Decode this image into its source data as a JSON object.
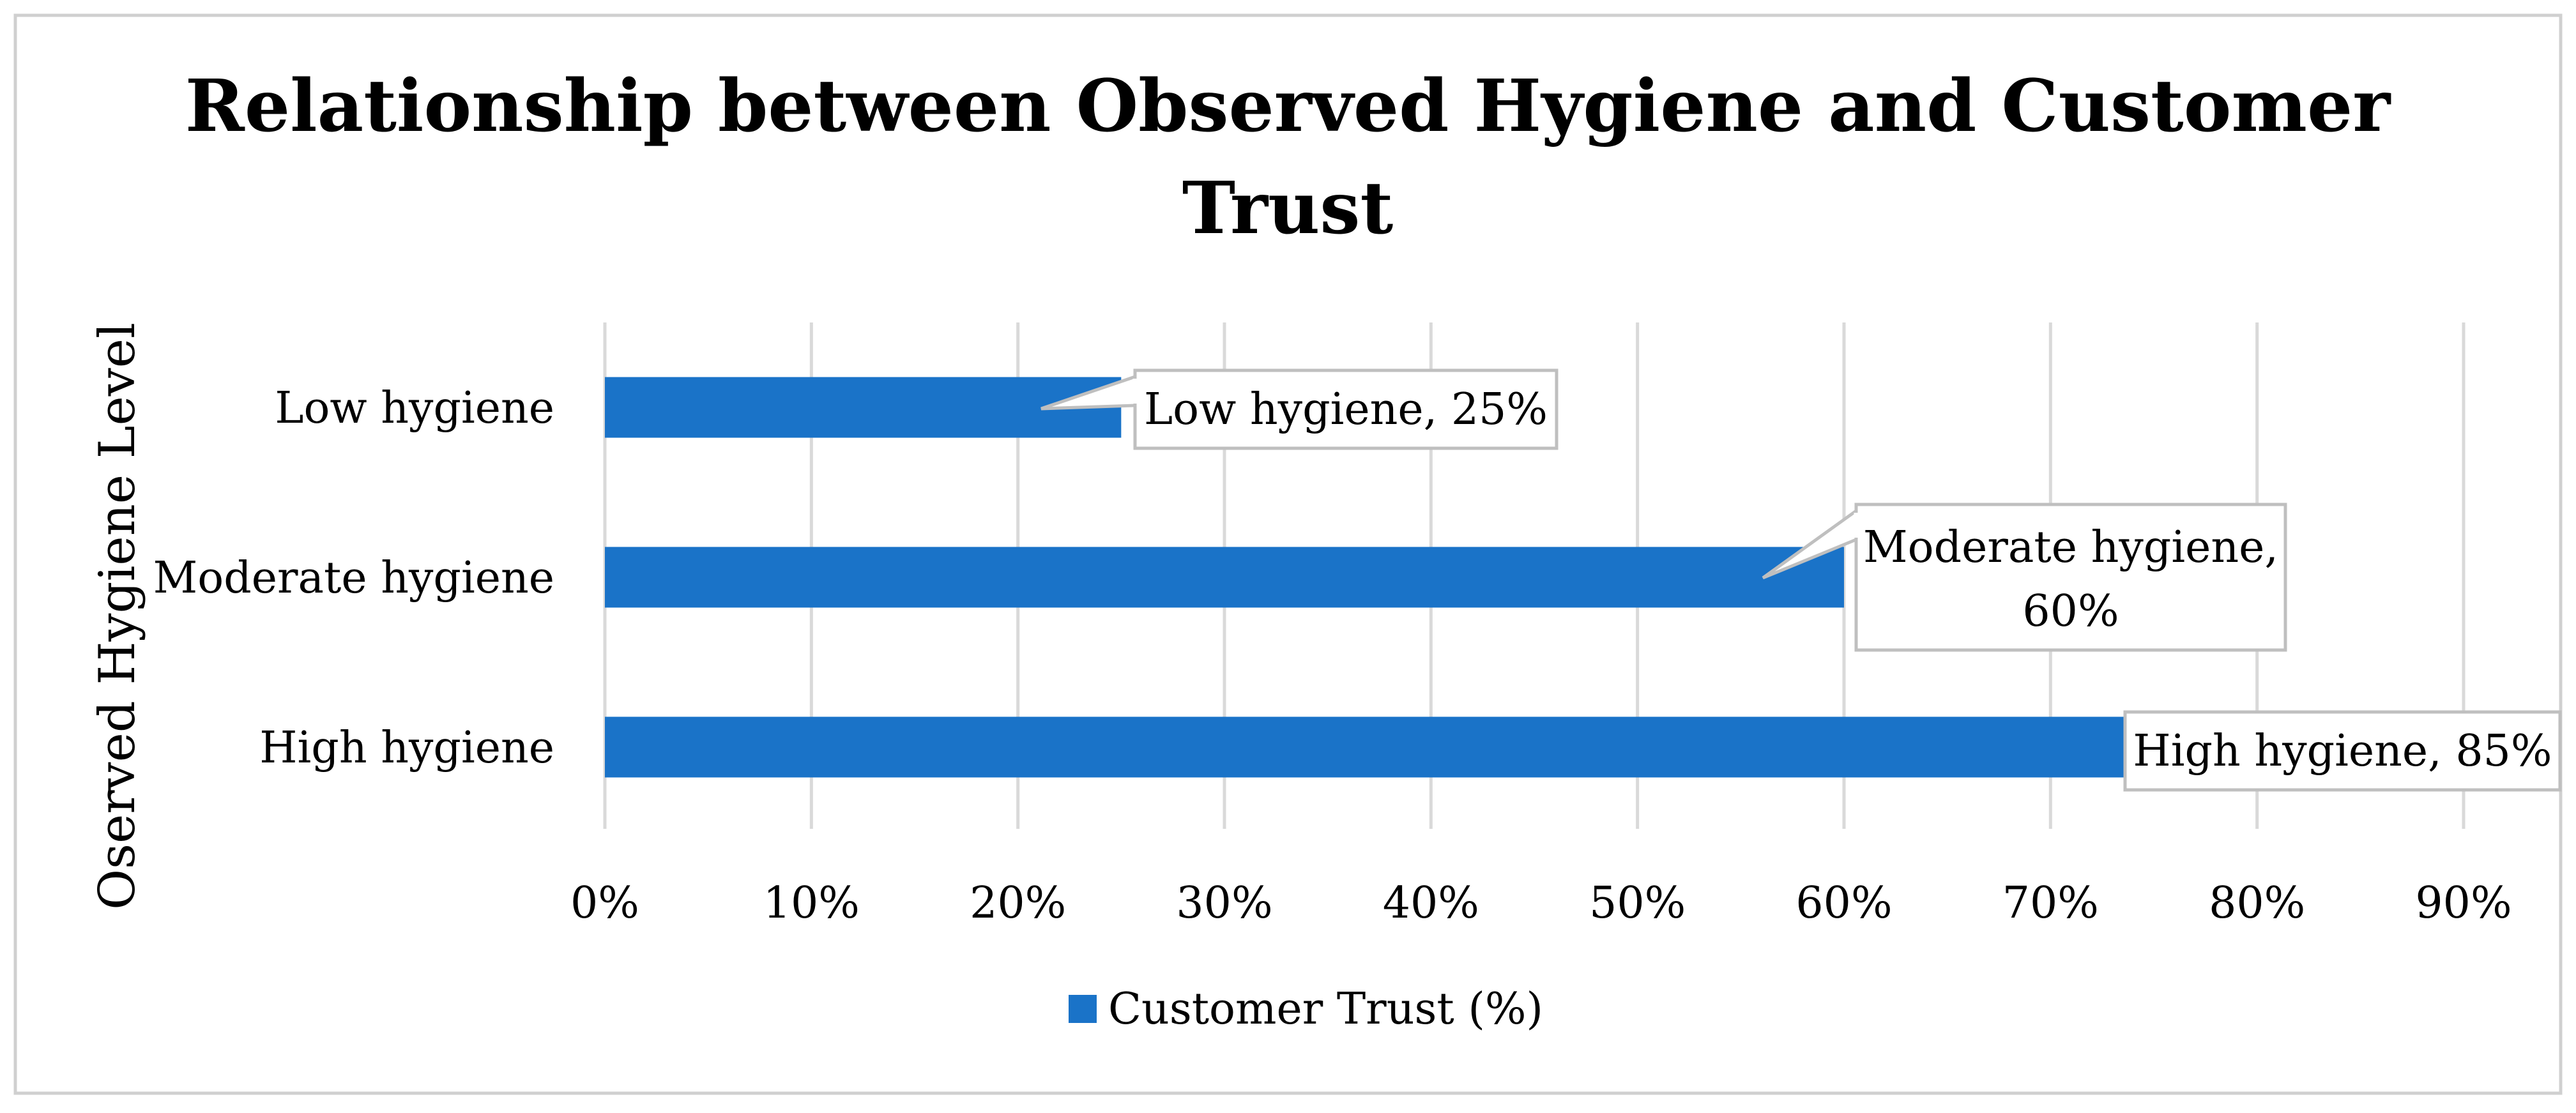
{
  "chart_data": {
    "type": "bar",
    "orientation": "horizontal",
    "title": "Relationship between Observed Hygiene and Customer Trust",
    "ylabel": "Oserved Hygiene Level",
    "xlabel": "",
    "categories": [
      "Low hygiene",
      "Moderate hygiene",
      "High hygiene"
    ],
    "series": [
      {
        "name": "Customer Trust (%)",
        "values": [
          25,
          60,
          85
        ],
        "color": "#1a73c8"
      }
    ],
    "data_labels": [
      "Low hygiene, 25%",
      "Moderate hygiene, 60%",
      "High hygiene, 85%"
    ],
    "xlim": [
      0,
      90
    ],
    "x_ticks": [
      "0%",
      "10%",
      "20%",
      "30%",
      "40%",
      "50%",
      "60%",
      "70%",
      "80%",
      "90%"
    ],
    "grid": "vertical",
    "legend_position": "bottom"
  }
}
